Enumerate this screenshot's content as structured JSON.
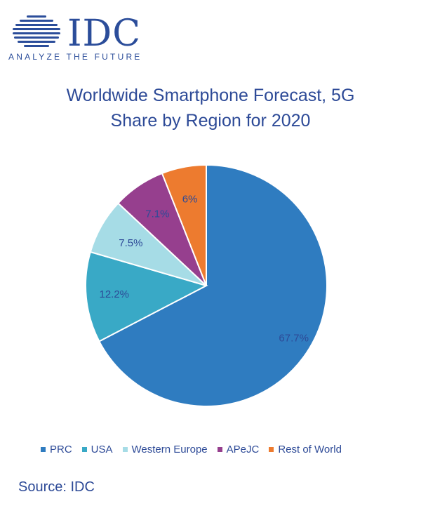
{
  "logo": {
    "wordmark": "IDC",
    "tagline": "ANALYZE THE FUTURE",
    "color": "#2b4d9a"
  },
  "chart_data": {
    "type": "pie",
    "title": "Worldwide Smartphone Forecast, 5G",
    "subtitle": "Share by Region for 2020",
    "categories": [
      "PRC",
      "USA",
      "Western Europe",
      "APeJC",
      "Rest of World"
    ],
    "values": [
      67.7,
      12.2,
      7.5,
      7.1,
      6
    ],
    "data_labels": [
      "67.7%",
      "12.2%",
      "7.5%",
      "7.1%",
      "6%"
    ],
    "colors": [
      "#2f7cc0",
      "#39a9c6",
      "#a6dce6",
      "#963f8e",
      "#ed7b2f"
    ],
    "label_color": "#2d4a97",
    "legend_position": "bottom",
    "start": "12 o'clock, clockwise"
  },
  "source": "Source: IDC"
}
